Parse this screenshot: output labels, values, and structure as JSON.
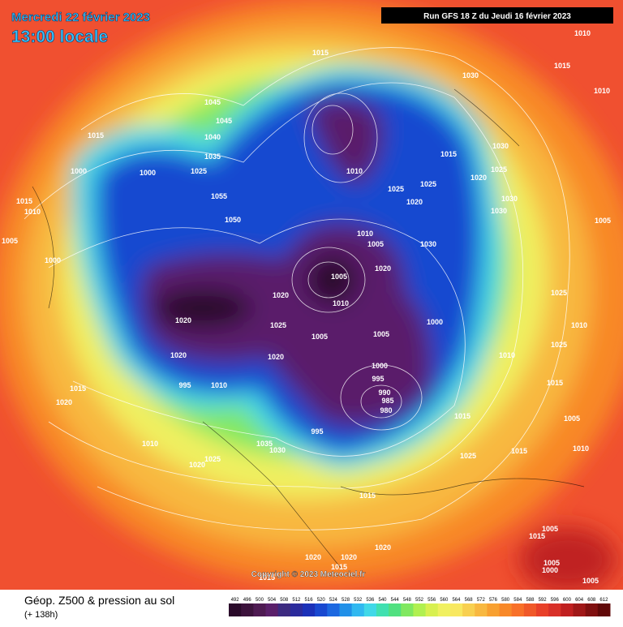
{
  "header": {
    "date": "Mercredi 22 février 2023",
    "time": "13:00 locale",
    "run": "Run GFS 18 Z du Jeudi 16 février 2023"
  },
  "footer": {
    "title": "Géop. Z500 & pression au sol",
    "lead": "(+ 138h)",
    "copyright": "Copyright © 2023 Meteociel.fr"
  },
  "scale": {
    "levels": [
      492,
      496,
      500,
      504,
      508,
      512,
      516,
      520,
      524,
      528,
      532,
      536,
      540,
      544,
      548,
      552,
      556,
      560,
      564,
      568,
      572,
      576,
      580,
      584,
      588,
      592,
      596,
      600,
      604,
      608,
      612
    ],
    "colors": [
      "#2a0a2a",
      "#3c123c",
      "#4e1a52",
      "#5a1f6a",
      "#3c2a80",
      "#2a2a9c",
      "#1a30b8",
      "#1848d0",
      "#1c68e0",
      "#2090e8",
      "#30b8f0",
      "#40d8e8",
      "#40e0b0",
      "#50e080",
      "#80e860",
      "#b0f050",
      "#d8f050",
      "#f0f060",
      "#f8e860",
      "#f8d050",
      "#f8b840",
      "#f8a030",
      "#f88828",
      "#f87028",
      "#f05828",
      "#e84028",
      "#d83028",
      "#c02020",
      "#a01818",
      "#801010",
      "#600808"
    ]
  },
  "isobar_labels": [
    "1010",
    "1015",
    "1030",
    "1015",
    "1010",
    "1045",
    "1045",
    "1040",
    "1015",
    "1035",
    "1025",
    "1000",
    "1000",
    "1015",
    "1030",
    "1025",
    "1020",
    "1010",
    "1025",
    "1020",
    "1025",
    "1015",
    "1010",
    "1055",
    "1050",
    "1030",
    "1030",
    "1005",
    "1005",
    "1000",
    "1010",
    "1005",
    "1030",
    "1020",
    "1005",
    "1020",
    "1010",
    "1025",
    "1020",
    "1025",
    "1005",
    "1005",
    "1000",
    "1010",
    "1025",
    "1020",
    "1010",
    "1020",
    "995",
    "1010",
    "1015",
    "1020",
    "1015",
    "1000",
    "995",
    "990",
    "985",
    "980",
    "1015",
    "1005",
    "995",
    "1010",
    "1035",
    "1030",
    "1025",
    "1020",
    "1015",
    "1025",
    "1010",
    "1015",
    "1020",
    "1005",
    "1015",
    "1020",
    "1020",
    "1015",
    "1005",
    "1000",
    "1005",
    "1015"
  ]
}
